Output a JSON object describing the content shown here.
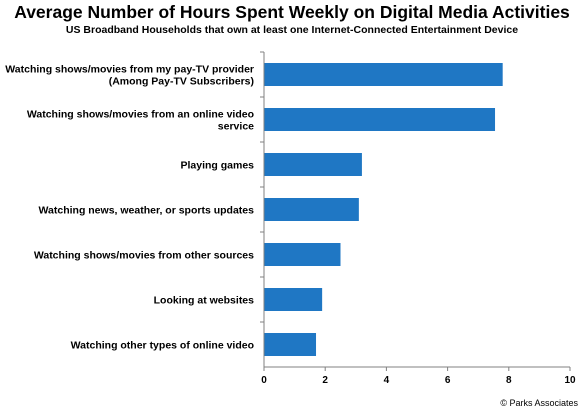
{
  "chart_data": {
    "type": "bar",
    "orientation": "horizontal",
    "title": "Average Number of Hours Spent Weekly on Digital Media Activities",
    "subtitle": "US Broadband Households that own at least one Internet-Connected Entertainment  Device",
    "categories": [
      [
        "Watching shows/movies from my pay-TV provider",
        "(Among Pay-TV Subscribers)"
      ],
      [
        "Watching shows/movies from an online video",
        "service"
      ],
      [
        "Playing games"
      ],
      [
        "Watching news, weather, or sports updates"
      ],
      [
        "Watching shows/movies from other sources"
      ],
      [
        "Looking at websites"
      ],
      [
        "Watching other types of online video"
      ]
    ],
    "values": [
      7.8,
      7.55,
      3.2,
      3.1,
      2.5,
      1.9,
      1.7
    ],
    "xlim": [
      0,
      10
    ],
    "xticks": [
      0,
      2,
      4,
      6,
      8,
      10
    ],
    "bar_color": "#1f77c4",
    "source": "© Parks Associates"
  }
}
